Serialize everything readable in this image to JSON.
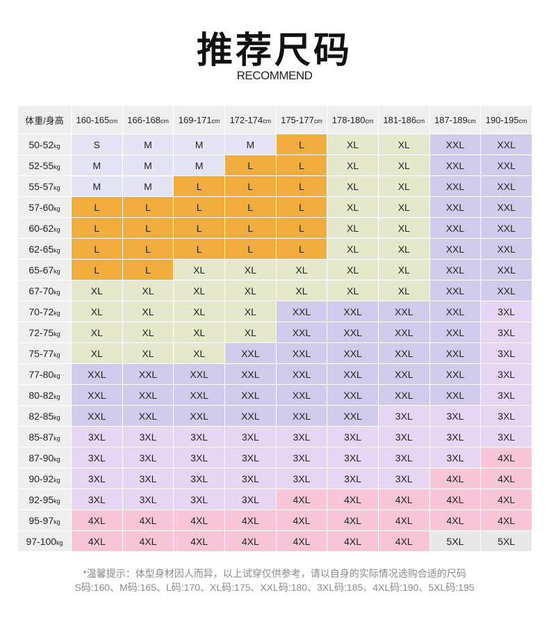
{
  "title": "推荐尺码",
  "subtitle": "RECOMMEND",
  "corner": "体重/身高",
  "height_unit": "cm",
  "weight_unit": "kg",
  "heights": [
    "160-165",
    "166-168",
    "169-171",
    "172-174",
    "175-177",
    "178-180",
    "181-186",
    "187-189",
    "190-195"
  ],
  "rows": [
    {
      "w": "50-52",
      "s": [
        "S",
        "M",
        "M",
        "M",
        "L",
        "XL",
        "XL",
        "XXL",
        "XXL"
      ]
    },
    {
      "w": "52-55",
      "s": [
        "M",
        "M",
        "M",
        "L",
        "L",
        "XL",
        "XL",
        "XXL",
        "XXL"
      ]
    },
    {
      "w": "55-57",
      "s": [
        "M",
        "M",
        "L",
        "L",
        "L",
        "XL",
        "XL",
        "XXL",
        "XXL"
      ]
    },
    {
      "w": "57-60",
      "s": [
        "L",
        "L",
        "L",
        "L",
        "L",
        "XL",
        "XL",
        "XXL",
        "XXL"
      ]
    },
    {
      "w": "60-62",
      "s": [
        "L",
        "L",
        "L",
        "L",
        "L",
        "XL",
        "XL",
        "XXL",
        "XXL"
      ]
    },
    {
      "w": "62-65",
      "s": [
        "L",
        "L",
        "L",
        "L",
        "L",
        "XL",
        "XL",
        "XXL",
        "XXL"
      ]
    },
    {
      "w": "65-67",
      "s": [
        "L",
        "L",
        "XL",
        "XL",
        "XL",
        "XL",
        "XL",
        "XXL",
        "XXL"
      ]
    },
    {
      "w": "67-70",
      "s": [
        "XL",
        "XL",
        "XL",
        "XL",
        "XL",
        "XL",
        "XL",
        "XXL",
        "XXL"
      ]
    },
    {
      "w": "70-72",
      "s": [
        "XL",
        "XL",
        "XL",
        "XL",
        "XXL",
        "XXL",
        "XXL",
        "XXL",
        "3XL"
      ]
    },
    {
      "w": "72-75",
      "s": [
        "XL",
        "XL",
        "XL",
        "XL",
        "XXL",
        "XXL",
        "XXL",
        "XXL",
        "3XL"
      ]
    },
    {
      "w": "75-77",
      "s": [
        "XL",
        "XL",
        "XL",
        "XXL",
        "XXL",
        "XXL",
        "XXL",
        "XXL",
        "3XL"
      ]
    },
    {
      "w": "77-80",
      "s": [
        "XXL",
        "XXL",
        "XXL",
        "XXL",
        "XXL",
        "XXL",
        "XXL",
        "XXL",
        "3XL"
      ]
    },
    {
      "w": "80-82",
      "s": [
        "XXL",
        "XXL",
        "XXL",
        "XXL",
        "XXL",
        "XXL",
        "XXL",
        "XXL",
        "3XL"
      ]
    },
    {
      "w": "82-85",
      "s": [
        "XXL",
        "XXL",
        "XXL",
        "XXL",
        "XXL",
        "XXL",
        "3XL",
        "3XL",
        "3XL"
      ]
    },
    {
      "w": "85-87",
      "s": [
        "3XL",
        "3XL",
        "3XL",
        "3XL",
        "3XL",
        "3XL",
        "3XL",
        "3XL",
        "3XL"
      ]
    },
    {
      "w": "87-90",
      "s": [
        "3XL",
        "3XL",
        "3XL",
        "3XL",
        "3XL",
        "3XL",
        "3XL",
        "3XL",
        "4XL"
      ]
    },
    {
      "w": "90-92",
      "s": [
        "3XL",
        "3XL",
        "3XL",
        "3XL",
        "3XL",
        "3XL",
        "3XL",
        "4XL",
        "4XL"
      ]
    },
    {
      "w": "92-95",
      "s": [
        "3XL",
        "3XL",
        "3XL",
        "3XL",
        "4XL",
        "4XL",
        "4XL",
        "4XL",
        "4XL"
      ]
    },
    {
      "w": "95-97",
      "s": [
        "4XL",
        "4XL",
        "4XL",
        "4XL",
        "4XL",
        "4XL",
        "4XL",
        "4XL",
        "4XL"
      ]
    },
    {
      "w": "97-100",
      "s": [
        "4XL",
        "4XL",
        "4XL",
        "4XL",
        "4XL",
        "4XL",
        "4XL",
        "5XL",
        "5XL"
      ]
    }
  ],
  "colors": {
    "S": "#e4e4f4",
    "M": "#e4e4f4",
    "L": "#f0ac3c",
    "XL": "#e5e8ca",
    "XXL": "#d0cbea",
    "3XL": "#e6d5f3",
    "4XL": "#f7c5d7",
    "5XL": "#e8e8e8"
  },
  "notes": {
    "line1": "*温馨提示：体型身材因人而异，以上试穿仅供参考，请以自身的实际情况选购合适的尺码",
    "line2": "S码:160、M码:165、L码:170、XL码:175、XXL码:180、3XL码:185、4XL码:190、5XL码:195"
  }
}
